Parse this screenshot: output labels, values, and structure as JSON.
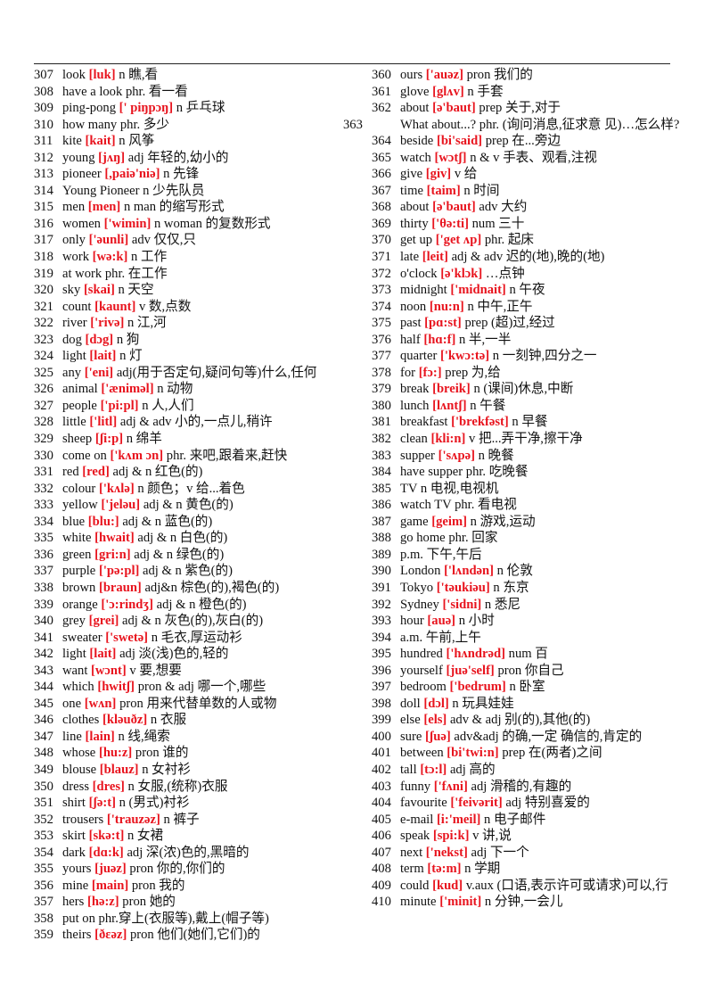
{
  "columns": [
    {
      "entries": [
        {
          "num": "307",
          "word": "look",
          "phon": "[luk]",
          "def": "n 瞧,看"
        },
        {
          "num": "308",
          "word": "have a look",
          "phon": "",
          "def": "phr. 看一看"
        },
        {
          "num": "309",
          "word": "ping-pong",
          "phon": "[' piŋpɔŋ]",
          "def": "n 乒乓球"
        },
        {
          "num": "310",
          "word": "how many",
          "phon": "",
          "def": "phr. 多少"
        },
        {
          "num": "311",
          "word": "kite",
          "phon": "[kait]",
          "def": "n 风筝"
        },
        {
          "num": "312",
          "word": "young",
          "phon": "[jʌŋ]",
          "def": "adj 年轻的,幼小的"
        },
        {
          "num": "313",
          "word": "pioneer",
          "phon": "[,paiə'niə]",
          "def": "n 先锋"
        },
        {
          "num": "314",
          "word": "Young Pioneer",
          "phon": "",
          "def": "n 少先队员"
        },
        {
          "num": "315",
          "word": "men",
          "phon": "[men]",
          "def": "n   man 的缩写形式"
        },
        {
          "num": "316",
          "word": "women",
          "phon": "['wimin]",
          "def": "n   woman 的复数形式"
        },
        {
          "num": "317",
          "word": "only",
          "phon": "['əunli]",
          "def": "adv 仅仅,只"
        },
        {
          "num": "318",
          "word": "work",
          "phon": "[wə:k]",
          "def": "n 工作"
        },
        {
          "num": "319",
          "word": "at work",
          "phon": "",
          "def": "phr. 在工作"
        },
        {
          "num": "320",
          "word": "sky",
          "phon": "[skai]",
          "def": "n 天空"
        },
        {
          "num": "321",
          "word": "count",
          "phon": "[kaunt]",
          "def": "v  数,点数"
        },
        {
          "num": "322",
          "word": "river",
          "phon": "['rivə]",
          "def": "n 江,河"
        },
        {
          "num": "323",
          "word": "dog",
          "phon": "[dɔg]",
          "def": "n 狗"
        },
        {
          "num": "324",
          "word": "light",
          "phon": "[lait]",
          "def": "n 灯"
        },
        {
          "num": "325",
          "word": "any",
          "phon": "['eni]",
          "def": "adj(用于否定句,疑问句等)什么,任何"
        },
        {
          "num": "326",
          "word": "animal",
          "phon": "['æniməl]",
          "def": "n 动物"
        },
        {
          "num": "327",
          "word": "people",
          "phon": "['pi:pl]",
          "def": "n 人,人们"
        },
        {
          "num": "328",
          "word": "little",
          "phon": "['litl]",
          "def": "adj & adv 小的,一点儿,稍许"
        },
        {
          "num": "329",
          "word": "sheep",
          "phon": "[ʃi:p]",
          "def": "n 绵羊"
        },
        {
          "num": "330",
          "word": "come on",
          "phon": "['kʌm ɔn]",
          "def": "phr. 来吧,跟着来,赶快"
        },
        {
          "num": "331",
          "word": "red",
          "phon": "[red]",
          "def": "adj & n 红色(的)"
        },
        {
          "num": "332",
          "word": "colour",
          "phon": "['kʌlə]",
          "def": "n 颜色；v 给...着色"
        },
        {
          "num": "333",
          "word": "yellow",
          "phon": "['jeləu]",
          "def": "adj & n 黄色(的)"
        },
        {
          "num": "334",
          "word": "blue",
          "phon": "[blu:]",
          "def": "adj & n 蓝色(的)"
        },
        {
          "num": "335",
          "word": "white",
          "phon": "[hwait]",
          "def": "adj & n 白色(的)"
        },
        {
          "num": "336",
          "word": "green",
          "phon": "[gri:n]",
          "def": "adj & n 绿色(的)"
        },
        {
          "num": "337",
          "word": "purple",
          "phon": "['pə:pl]",
          "def": "adj & n 紫色(的)"
        },
        {
          "num": "338",
          "word": "brown",
          "phon": "[braun]",
          "def": "adj&n 棕色(的),褐色(的)"
        },
        {
          "num": "339",
          "word": "orange",
          "phon": "['ɔ:rindʒ]",
          "def": "adj & n 橙色(的)"
        },
        {
          "num": "340",
          "word": "grey",
          "phon": "[grei]",
          "def": "adj & n 灰色(的),灰白(的)"
        },
        {
          "num": "341",
          "word": "sweater",
          "phon": "['swetə]",
          "def": "n 毛衣,厚运动衫"
        },
        {
          "num": "342",
          "word": "light",
          "phon": "[lait]",
          "def": "adj 淡(浅)色的,轻的"
        },
        {
          "num": "343",
          "word": "want",
          "phon": "[wɔnt]",
          "def": "v  要,想要"
        },
        {
          "num": "344",
          "word": "which",
          "phon": "[hwitʃ]",
          "def": "pron & adj 哪一个,哪些"
        },
        {
          "num": "345",
          "word": "one",
          "phon": "[wʌn]",
          "def": "pron 用来代替单数的人或物"
        },
        {
          "num": "346",
          "word": "clothes",
          "phon": "[kləuðz]",
          "def": "n 衣服"
        },
        {
          "num": "347",
          "word": "line",
          "phon": "[lain]",
          "def": "n 线,绳索"
        },
        {
          "num": "348",
          "word": "whose",
          "phon": "[hu:z]",
          "def": "pron 谁的"
        },
        {
          "num": "349",
          "word": "blouse",
          "phon": "[blauz]",
          "def": "n 女衬衫"
        },
        {
          "num": "350",
          "word": "dress",
          "phon": "[dres]",
          "def": "n 女服,(统称)衣服"
        },
        {
          "num": "351",
          "word": "shirt",
          "phon": "[ʃə:t]",
          "def": "n (男式)衬衫"
        },
        {
          "num": "352",
          "word": "trousers",
          "phon": "['trauzəz]",
          "def": "n 裤子"
        },
        {
          "num": "353",
          "word": "skirt",
          "phon": "[skə:t]",
          "def": "n 女裙"
        },
        {
          "num": "354",
          "word": "dark",
          "phon": "[dɑ:k]",
          "def": "adj 深(浓)色的,黑暗的"
        },
        {
          "num": "355",
          "word": "yours",
          "phon": "[juəz]",
          "def": "pron 你的,你们的"
        },
        {
          "num": "356",
          "word": "mine",
          "phon": "[main]",
          "def": "pron 我的"
        },
        {
          "num": "357",
          "word": "hers",
          "phon": "[hə:z]",
          "def": "pron 她的"
        },
        {
          "num": "358",
          "word": "put on",
          "phon": "",
          "def": "phr.穿上(衣服等),戴上(帽子等)"
        },
        {
          "num": "359",
          "word": "theirs",
          "phon": "[ðεəz]",
          "def": "pron 他们(她们,它们)的"
        }
      ]
    },
    {
      "entries": [
        {
          "num": "360",
          "word": "ours",
          "phon": "['auəz]",
          "def": "pron 我们的"
        },
        {
          "num": "361",
          "word": "glove",
          "phon": "[glʌv]",
          "def": "n 手套"
        },
        {
          "num": "362",
          "word": "about",
          "phon": "[ə'baut]",
          "def": "prep  关于,对于"
        },
        {
          "num": "363",
          "word": "What about...?",
          "phon": "",
          "def": "phr. (询问消息,征求意 见)…怎么样?"
        },
        {
          "num": "364",
          "word": "beside",
          "phon": "[bi'said]",
          "def": "prep 在...旁边"
        },
        {
          "num": "365",
          "word": "watch",
          "phon": "[wɔtʃ]",
          "def": "n & v  手表、观看,注视"
        },
        {
          "num": "366",
          "word": "give",
          "phon": "[giv]",
          "def": "v  给"
        },
        {
          "num": "367",
          "word": "time",
          "phon": "[taim]",
          "def": "n 时间"
        },
        {
          "num": "368",
          "word": "about",
          "phon": "[ə'baut]",
          "def": "adv 大约"
        },
        {
          "num": "369",
          "word": "thirty",
          "phon": "['θə:ti]",
          "def": "num 三十"
        },
        {
          "num": "370",
          "word": "get up",
          "phon": "['get ʌp]",
          "def": "phr. 起床"
        },
        {
          "num": "371",
          "word": "late",
          "phon": "[leit]",
          "def": "adj & adv 迟的(地),晚的(地)"
        },
        {
          "num": "372",
          "word": "o'clock",
          "phon": "[ə'klɔk]",
          "def": " …点钟"
        },
        {
          "num": "373",
          "word": "midnight",
          "phon": "['midnait]",
          "def": "n 午夜"
        },
        {
          "num": "374",
          "word": "noon",
          "phon": "[nu:n]",
          "def": "n 中午,正午"
        },
        {
          "num": "375",
          "word": "past",
          "phon": "[pɑ:st]",
          "def": "prep  (超)过,经过"
        },
        {
          "num": "376",
          "word": "half",
          "phon": "[hɑ:f]",
          "def": "n 半,一半"
        },
        {
          "num": "377",
          "word": "quarter",
          "phon": "['kwɔ:tə]",
          "def": "n 一刻钟,四分之一"
        },
        {
          "num": "378",
          "word": "for",
          "phon": "[fɔ:]",
          "def": "prep  为,给"
        },
        {
          "num": "379",
          "word": "break",
          "phon": "[breik]",
          "def": "n (课间)休息,中断"
        },
        {
          "num": "380",
          "word": "lunch",
          "phon": "[lʌntʃ]",
          "def": "n 午餐"
        },
        {
          "num": "381",
          "word": "breakfast",
          "phon": "['brekfəst]",
          "def": "n 早餐"
        },
        {
          "num": "382",
          "word": "clean",
          "phon": "[kli:n]",
          "def": "v  把...弄干净,擦干净"
        },
        {
          "num": "383",
          "word": "supper",
          "phon": "['sʌpə]",
          "def": "n 晚餐"
        },
        {
          "num": "384",
          "word": "have supper",
          "phon": "",
          "def": "phr. 吃晚餐"
        },
        {
          "num": "385",
          "word": "TV",
          "phon": "",
          "def": "n 电视,电视机"
        },
        {
          "num": "386",
          "word": "watch TV",
          "phon": "",
          "def": "phr. 看电视"
        },
        {
          "num": "387",
          "word": "game",
          "phon": "[geim]",
          "def": "n 游戏,运动"
        },
        {
          "num": "388",
          "word": "go home",
          "phon": "",
          "def": "phr. 回家"
        },
        {
          "num": "389",
          "word": "p.m.",
          "phon": "",
          "def": "  下午,午后"
        },
        {
          "num": "390",
          "word": "London",
          "phon": "['lʌndən]",
          "def": "n 伦敦"
        },
        {
          "num": "391",
          "word": "Tokyo",
          "phon": "['təukiəu]",
          "def": "n 东京"
        },
        {
          "num": "392",
          "word": "Sydney",
          "phon": "['sidni]",
          "def": "n 悉尼"
        },
        {
          "num": "393",
          "word": "hour",
          "phon": "[auə]",
          "def": "n 小时"
        },
        {
          "num": "394",
          "word": "a.m.",
          "phon": "",
          "def": "  午前,上午"
        },
        {
          "num": "395",
          "word": "hundred",
          "phon": "['hʌndrəd]",
          "def": "num 百"
        },
        {
          "num": "396",
          "word": "yourself",
          "phon": "[juə'self]",
          "def": "pron 你自己"
        },
        {
          "num": "397",
          "word": "bedroom",
          "phon": "['bedrum]",
          "def": "n 卧室"
        },
        {
          "num": "398",
          "word": "doll",
          "phon": "[dɔl]",
          "def": "n 玩具娃娃"
        },
        {
          "num": "399",
          "word": "else",
          "phon": "[els]",
          "def": "adv & adj 别(的),其他(的)"
        },
        {
          "num": "400",
          "word": "sure",
          "phon": "[ʃuə]",
          "def": "adv&adj 的确,一定 确信的,肯定的"
        },
        {
          "num": "401",
          "word": "between",
          "phon": "[bi'twi:n]",
          "def": "prep 在(两者)之间"
        },
        {
          "num": "402",
          "word": "tall",
          "phon": "[tɔ:l]",
          "def": "adj 高的"
        },
        {
          "num": "403",
          "word": "funny",
          "phon": "['fʌni]",
          "def": "adj 滑稽的,有趣的"
        },
        {
          "num": "404",
          "word": "favourite",
          "phon": "['feivərit]",
          "def": "adj 特别喜爱的"
        },
        {
          "num": "405",
          "word": "e-mail",
          "phon": "[i:'meil]",
          "def": "n 电子邮件"
        },
        {
          "num": "406",
          "word": "speak",
          "phon": "[spi:k]",
          "def": "v  讲,说"
        },
        {
          "num": "407",
          "word": "next",
          "phon": "['nekst]",
          "def": "adj 下一个"
        },
        {
          "num": "408",
          "word": "term",
          "phon": "[tə:m]",
          "def": "n 学期"
        },
        {
          "num": "409",
          "word": "could",
          "phon": "[kud]",
          "def": "v.aux (口语,表示许可或请求)可以,行"
        },
        {
          "num": "410",
          "word": "minute",
          "phon": "['minit]",
          "def": "n 分钟,一会儿"
        }
      ]
    }
  ],
  "colors": {
    "phonetic": "#e8141e",
    "text": "#111111"
  }
}
